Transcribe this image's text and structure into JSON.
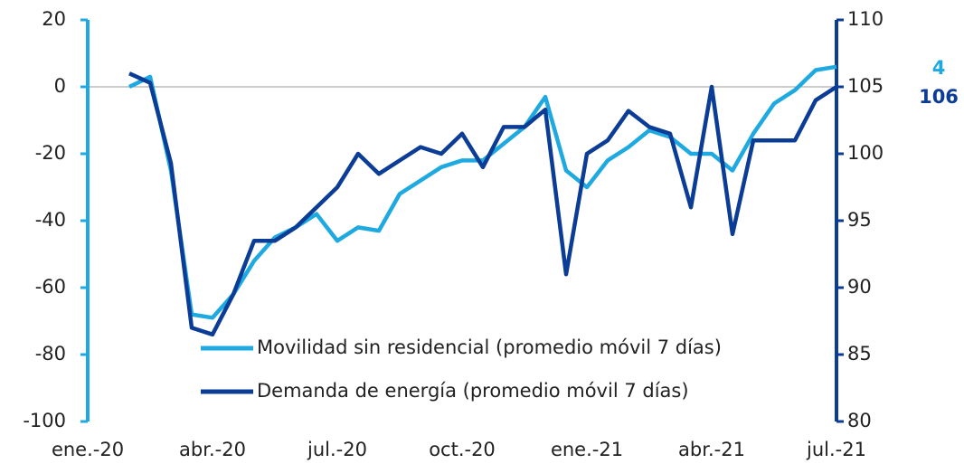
{
  "chart_data": {
    "type": "line",
    "categories": [
      "ene.-20",
      null,
      null,
      null,
      null,
      null,
      "abr.-20",
      null,
      null,
      null,
      null,
      null,
      "jul.-20",
      null,
      null,
      null,
      null,
      null,
      "oct.-20",
      null,
      null,
      null,
      null,
      null,
      "ene.-21",
      null,
      null,
      null,
      null,
      null,
      "abr.-21",
      null,
      null,
      null,
      null,
      null,
      "jul.-21"
    ],
    "series": [
      {
        "name": "Movilidad sin residencial (promedio móvil 7 días)",
        "color": "#1fa9e1",
        "axis": "y",
        "values": [
          null,
          null,
          0,
          3,
          -25,
          -68,
          -69,
          -62,
          -52,
          -45,
          -42,
          -38,
          -46,
          -42,
          -43,
          -32,
          -28,
          -24,
          -22,
          -22,
          -17,
          -12,
          -3,
          -25,
          -30,
          -22,
          -18,
          -13,
          -15,
          -20,
          -20,
          -25,
          -14,
          -5,
          -1,
          5,
          6
        ]
      },
      {
        "name": "Demanda de energía (promedio móvil 7 días)",
        "color": "#0b3c96",
        "axis": "y2",
        "values": [
          null,
          null,
          106,
          105.3,
          99.3,
          87,
          86.5,
          89.5,
          93.5,
          93.5,
          94.5,
          96,
          97.5,
          100,
          98.5,
          99.5,
          100.5,
          100,
          101.5,
          99,
          102,
          102,
          103.3,
          91,
          100,
          101,
          103.2,
          102,
          101.5,
          96,
          105,
          94,
          101,
          101,
          101,
          104,
          105
        ]
      }
    ],
    "ylim": [
      -100,
      20
    ],
    "yticks": [
      -100,
      -80,
      -60,
      -40,
      -20,
      0,
      20
    ],
    "y2lim": [
      80,
      110
    ],
    "y2ticks": [
      80,
      85,
      90,
      95,
      100,
      105,
      110
    ],
    "annotations": [
      "4",
      "106"
    ]
  }
}
